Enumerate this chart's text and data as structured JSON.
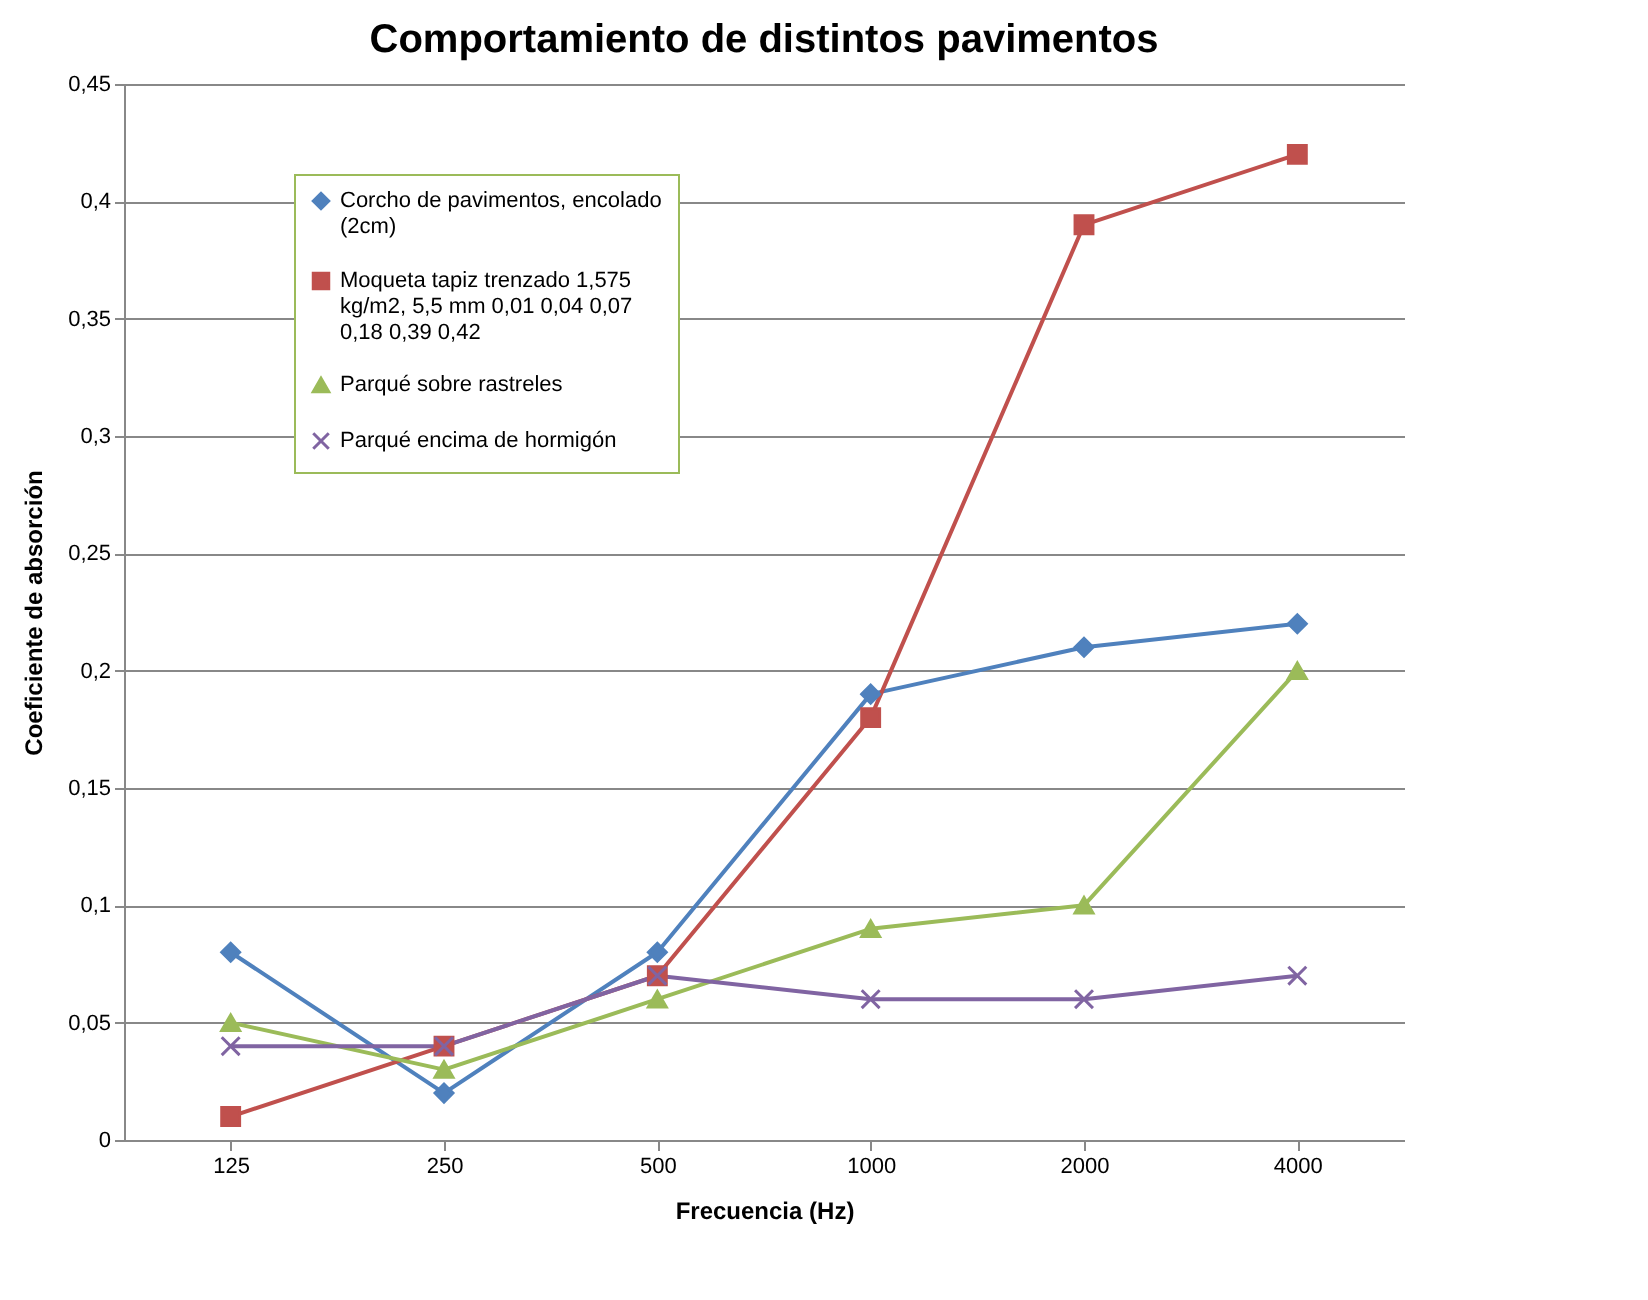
{
  "chart_data": {
    "type": "line",
    "title": "Comportamiento de distintos pavimentos",
    "xlabel": "Frecuencia (Hz)",
    "ylabel": "Coeficiente de absorción",
    "categories": [
      "125",
      "250",
      "500",
      "1000",
      "2000",
      "4000"
    ],
    "series": [
      {
        "name": "Corcho de pavimentos, encolado (2cm)",
        "color": "#4f81bd",
        "marker": "diamond",
        "values": [
          0.08,
          0.02,
          0.08,
          0.19,
          0.21,
          0.22
        ]
      },
      {
        "name": "Moqueta tapiz trenzado 1,575 kg/m2, 5,5 mm 0,01 0,04 0,07 0,18 0,39 0,42",
        "color": "#c0504d",
        "marker": "square",
        "values": [
          0.01,
          0.04,
          0.07,
          0.18,
          0.39,
          0.42
        ]
      },
      {
        "name": "Parqué sobre rastreles",
        "color": "#9bbb59",
        "marker": "triangle",
        "values": [
          0.05,
          0.03,
          0.06,
          0.09,
          0.1,
          0.2
        ]
      },
      {
        "name": "Parqué encima de hormigón",
        "color": "#8064a2",
        "marker": "cross",
        "values": [
          0.04,
          0.04,
          0.07,
          0.06,
          0.06,
          0.07
        ]
      }
    ],
    "ylim": [
      0,
      0.45
    ],
    "yticks": [
      0,
      {
        "value": 0.05,
        "label": "0,05"
      },
      {
        "value": 0.1,
        "label": "0,1"
      },
      {
        "value": 0.15,
        "label": "0,15"
      },
      {
        "value": 0.2,
        "label": "0,2"
      },
      {
        "value": 0.25,
        "label": "0,25"
      },
      {
        "value": 0.3,
        "label": "0,3"
      },
      {
        "value": 0.35,
        "label": "0,35"
      },
      {
        "value": 0.4,
        "label": "0,4"
      },
      {
        "value": 0.45,
        "label": "0,45"
      }
    ],
    "grid": "y",
    "legend": "top left",
    "line_style": "solid"
  }
}
